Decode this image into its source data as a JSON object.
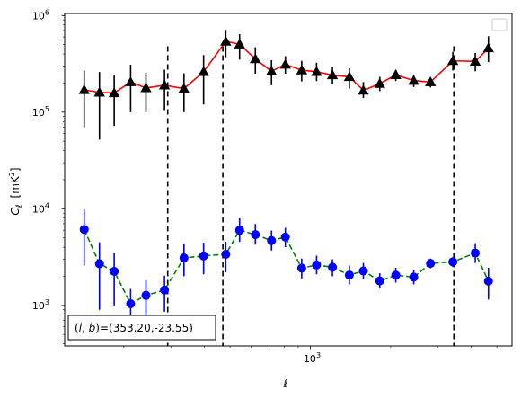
{
  "chart_data": {
    "type": "scatter",
    "xscale": "log",
    "yscale": "log",
    "xlim": [
      120,
      5700
    ],
    "ylim": [
      380,
      1050000
    ],
    "x_tick_labels": [
      {
        "value": 1000,
        "base": "10",
        "exp": "3"
      }
    ],
    "y_tick_labels": [
      {
        "value": 1000,
        "base": "10",
        "exp": "3"
      },
      {
        "value": 10000,
        "base": "10",
        "exp": "4"
      },
      {
        "value": 100000,
        "base": "10",
        "exp": "5"
      },
      {
        "value": 1000000,
        "base": "10",
        "exp": "6"
      }
    ],
    "xlabel": "ℓ",
    "ylabel_main": "C",
    "ylabel_sub": "ℓ",
    "ylabel_unit": "[mK",
    "ylabel_unit_exp": "2",
    "ylabel_unit_close": "]",
    "annotation": {
      "prefix": "(",
      "l": "l",
      "sep": ", ",
      "b": "b",
      "suffix": ")=(353.20,-23.55)"
    },
    "vlines": [
      292,
      470,
      3450
    ],
    "legend_placement": "top-right",
    "grid": false,
    "series": [
      {
        "color": "#ff0000",
        "marker": "triangle",
        "marker_color": "#000000",
        "line_style": "solid",
        "points": [
          {
            "x": 142,
            "y": 170000,
            "lo": 70000,
            "hi": 270000
          },
          {
            "x": 162,
            "y": 160000,
            "lo": 52000,
            "hi": 260000
          },
          {
            "x": 184,
            "y": 158000,
            "lo": 72000,
            "hi": 245000
          },
          {
            "x": 212,
            "y": 205000,
            "lo": 100000,
            "hi": 310000
          },
          {
            "x": 242,
            "y": 178000,
            "lo": 100000,
            "hi": 255000
          },
          {
            "x": 284,
            "y": 190000,
            "lo": 105000,
            "hi": 275000
          },
          {
            "x": 336,
            "y": 175000,
            "lo": 100000,
            "hi": 252000
          },
          {
            "x": 398,
            "y": 262000,
            "lo": 120000,
            "hi": 390000
          },
          {
            "x": 482,
            "y": 540000,
            "lo": 370000,
            "hi": 710000
          },
          {
            "x": 543,
            "y": 505000,
            "lo": 350000,
            "hi": 640000
          },
          {
            "x": 622,
            "y": 355000,
            "lo": 250000,
            "hi": 470000
          },
          {
            "x": 715,
            "y": 265000,
            "lo": 190000,
            "hi": 345000
          },
          {
            "x": 806,
            "y": 312000,
            "lo": 250000,
            "hi": 380000
          },
          {
            "x": 928,
            "y": 272000,
            "lo": 208000,
            "hi": 340000
          },
          {
            "x": 1055,
            "y": 262000,
            "lo": 210000,
            "hi": 325000
          },
          {
            "x": 1210,
            "y": 242000,
            "lo": 195000,
            "hi": 295000
          },
          {
            "x": 1400,
            "y": 232000,
            "lo": 175000,
            "hi": 285000
          },
          {
            "x": 1580,
            "y": 168000,
            "lo": 140000,
            "hi": 205000
          },
          {
            "x": 1820,
            "y": 197000,
            "lo": 165000,
            "hi": 232000
          },
          {
            "x": 2090,
            "y": 243000,
            "lo": 210000,
            "hi": 275000
          },
          {
            "x": 2440,
            "y": 212000,
            "lo": 182000,
            "hi": 245000
          },
          {
            "x": 2820,
            "y": 205000,
            "lo": 180000,
            "hi": 230000
          },
          {
            "x": 3420,
            "y": 340000,
            "lo": 270000,
            "hi": 420000
          },
          {
            "x": 4150,
            "y": 335000,
            "lo": 265000,
            "hi": 410000
          },
          {
            "x": 4650,
            "y": 460000,
            "lo": 330000,
            "hi": 610000
          }
        ]
      },
      {
        "color": "#008000",
        "marker": "circle",
        "marker_color": "#0000ff",
        "line_style": "dashed",
        "points": [
          {
            "x": 142,
            "y": 6100,
            "lo": 2600,
            "hi": 9800
          },
          {
            "x": 162,
            "y": 2700,
            "lo": 900,
            "hi": 4500
          },
          {
            "x": 184,
            "y": 2250,
            "lo": 1000,
            "hi": 3500
          },
          {
            "x": 212,
            "y": 1040,
            "lo": 700,
            "hi": 1480
          },
          {
            "x": 242,
            "y": 1270,
            "lo": 740,
            "hi": 1820
          },
          {
            "x": 284,
            "y": 1440,
            "lo": 860,
            "hi": 2030
          },
          {
            "x": 336,
            "y": 3100,
            "lo": 2000,
            "hi": 4300
          },
          {
            "x": 398,
            "y": 3250,
            "lo": 2100,
            "hi": 4450
          },
          {
            "x": 482,
            "y": 3380,
            "lo": 2200,
            "hi": 4550
          },
          {
            "x": 543,
            "y": 6000,
            "lo": 4550,
            "hi": 7950
          },
          {
            "x": 622,
            "y": 5400,
            "lo": 4250,
            "hi": 6950
          },
          {
            "x": 715,
            "y": 4680,
            "lo": 3700,
            "hi": 5950
          },
          {
            "x": 806,
            "y": 5100,
            "lo": 4000,
            "hi": 6350
          },
          {
            "x": 928,
            "y": 2430,
            "lo": 1900,
            "hi": 3050
          },
          {
            "x": 1055,
            "y": 2620,
            "lo": 2100,
            "hi": 3270
          },
          {
            "x": 1210,
            "y": 2480,
            "lo": 2000,
            "hi": 3000
          },
          {
            "x": 1400,
            "y": 2060,
            "lo": 1650,
            "hi": 2580
          },
          {
            "x": 1580,
            "y": 2270,
            "lo": 1850,
            "hi": 2750
          },
          {
            "x": 1820,
            "y": 1790,
            "lo": 1500,
            "hi": 2150
          },
          {
            "x": 2090,
            "y": 2050,
            "lo": 1720,
            "hi": 2450
          },
          {
            "x": 2440,
            "y": 1960,
            "lo": 1650,
            "hi": 2330
          },
          {
            "x": 2820,
            "y": 2720,
            "lo": 2420,
            "hi": 3050
          },
          {
            "x": 3420,
            "y": 2820,
            "lo": 2500,
            "hi": 3150
          },
          {
            "x": 4150,
            "y": 3480,
            "lo": 2750,
            "hi": 4400
          },
          {
            "x": 4650,
            "y": 1780,
            "lo": 1150,
            "hi": 2450
          }
        ]
      }
    ]
  }
}
